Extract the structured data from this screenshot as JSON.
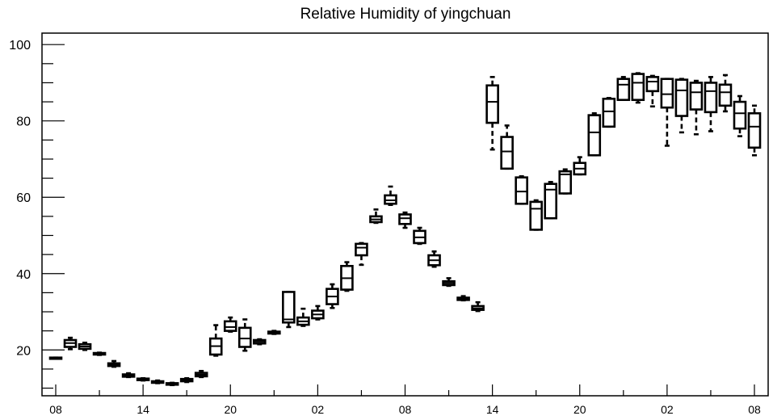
{
  "chart_data": {
    "type": "boxplot",
    "title": "Relative Humidity of yingchuan",
    "xlabel": "",
    "ylabel": "",
    "xlim": [
      0,
      48
    ],
    "ylim": [
      8,
      103
    ],
    "yticks": [
      20,
      40,
      60,
      80,
      100
    ],
    "yminor_step": 5,
    "xticks": [
      {
        "x": 0,
        "label": "08"
      },
      {
        "x": 6,
        "label": "14"
      },
      {
        "x": 12,
        "label": "20"
      },
      {
        "x": 18,
        "label": "02"
      },
      {
        "x": 24,
        "label": "08"
      },
      {
        "x": 30,
        "label": "14"
      },
      {
        "x": 36,
        "label": "20"
      },
      {
        "x": 42,
        "label": "02"
      },
      {
        "x": 48,
        "label": "08"
      }
    ],
    "boxes": [
      {
        "x": 0,
        "min": 17.8,
        "q1": 17.8,
        "median": 17.9,
        "q3": 18.0,
        "max": 18.0
      },
      {
        "x": 1,
        "min": 20.2,
        "q1": 20.8,
        "median": 21.8,
        "q3": 22.6,
        "max": 23.2
      },
      {
        "x": 2,
        "min": 20.0,
        "q1": 20.3,
        "median": 20.9,
        "q3": 21.5,
        "max": 21.9
      },
      {
        "x": 3,
        "min": 18.7,
        "q1": 18.8,
        "median": 19.0,
        "q3": 19.2,
        "max": 19.3
      },
      {
        "x": 4,
        "min": 15.6,
        "q1": 15.8,
        "median": 16.1,
        "q3": 16.5,
        "max": 17.1
      },
      {
        "x": 5,
        "min": 12.9,
        "q1": 13.0,
        "median": 13.3,
        "q3": 13.6,
        "max": 13.9
      },
      {
        "x": 6,
        "min": 12.0,
        "q1": 12.1,
        "median": 12.3,
        "q3": 12.5,
        "max": 12.6
      },
      {
        "x": 7,
        "min": 11.3,
        "q1": 11.4,
        "median": 11.6,
        "q3": 11.8,
        "max": 12.0
      },
      {
        "x": 8,
        "min": 10.8,
        "q1": 10.9,
        "median": 11.1,
        "q3": 11.3,
        "max": 11.4
      },
      {
        "x": 9,
        "min": 11.6,
        "q1": 11.8,
        "median": 12.1,
        "q3": 12.4,
        "max": 12.6
      },
      {
        "x": 10,
        "min": 12.9,
        "q1": 13.1,
        "median": 13.5,
        "q3": 14.0,
        "max": 14.5
      },
      {
        "x": 11,
        "min": 18.5,
        "q1": 18.8,
        "median": 21.0,
        "q3": 23.0,
        "max": 26.5
      },
      {
        "x": 12,
        "min": 24.8,
        "q1": 25.0,
        "median": 26.0,
        "q3": 27.5,
        "max": 28.5
      },
      {
        "x": 13,
        "min": 19.8,
        "q1": 20.8,
        "median": 23.0,
        "q3": 25.8,
        "max": 28.0
      },
      {
        "x": 14,
        "min": 21.5,
        "q1": 21.7,
        "median": 22.2,
        "q3": 22.6,
        "max": 22.8
      },
      {
        "x": 15,
        "min": 24.2,
        "q1": 24.3,
        "median": 24.6,
        "q3": 24.8,
        "max": 25.0
      },
      {
        "x": 16,
        "min": 26.0,
        "q1": 27.2,
        "median": 28.0,
        "q3": 35.2,
        "max": 35.2
      },
      {
        "x": 17,
        "min": 26.3,
        "q1": 26.6,
        "median": 27.5,
        "q3": 28.5,
        "max": 30.8
      },
      {
        "x": 18,
        "min": 28.0,
        "q1": 28.3,
        "median": 29.3,
        "q3": 30.3,
        "max": 31.5
      },
      {
        "x": 19,
        "min": 31.0,
        "q1": 32.0,
        "median": 34.0,
        "q3": 36.0,
        "max": 37.2
      },
      {
        "x": 20,
        "min": 35.5,
        "q1": 35.8,
        "median": 38.8,
        "q3": 42.0,
        "max": 43.0
      },
      {
        "x": 21,
        "min": 42.3,
        "q1": 44.8,
        "median": 46.8,
        "q3": 47.8,
        "max": 48.0
      },
      {
        "x": 22,
        "min": 53.3,
        "q1": 53.5,
        "median": 54.2,
        "q3": 55.0,
        "max": 56.8
      },
      {
        "x": 23,
        "min": 58.0,
        "q1": 58.3,
        "median": 59.2,
        "q3": 60.5,
        "max": 62.8
      },
      {
        "x": 24,
        "min": 52.0,
        "q1": 53.0,
        "median": 54.5,
        "q3": 55.5,
        "max": 56.0
      },
      {
        "x": 25,
        "min": 47.8,
        "q1": 48.0,
        "median": 49.5,
        "q3": 51.2,
        "max": 52.0
      },
      {
        "x": 26,
        "min": 41.8,
        "q1": 42.2,
        "median": 43.5,
        "q3": 44.8,
        "max": 45.8
      },
      {
        "x": 27,
        "min": 36.8,
        "q1": 37.0,
        "median": 37.5,
        "q3": 38.0,
        "max": 38.8
      },
      {
        "x": 28,
        "min": 33.0,
        "q1": 33.1,
        "median": 33.4,
        "q3": 33.7,
        "max": 34.1
      },
      {
        "x": 29,
        "min": 30.2,
        "q1": 30.5,
        "median": 30.9,
        "q3": 31.5,
        "max": 32.5
      },
      {
        "x": 30,
        "min": 72.5,
        "q1": 79.5,
        "median": 85.0,
        "q3": 89.3,
        "max": 91.5
      },
      {
        "x": 31,
        "min": 67.5,
        "q1": 67.5,
        "median": 72.0,
        "q3": 75.8,
        "max": 78.8
      },
      {
        "x": 32,
        "min": 58.3,
        "q1": 58.3,
        "median": 61.5,
        "q3": 65.2,
        "max": 65.5
      },
      {
        "x": 33,
        "min": 51.5,
        "q1": 51.5,
        "median": 57.0,
        "q3": 58.8,
        "max": 59.2
      },
      {
        "x": 34,
        "min": 54.5,
        "q1": 54.5,
        "median": 62.0,
        "q3": 63.5,
        "max": 64.0
      },
      {
        "x": 35,
        "min": 61.0,
        "q1": 61.0,
        "median": 66.0,
        "q3": 66.8,
        "max": 67.3
      },
      {
        "x": 36,
        "min": 66.0,
        "q1": 66.0,
        "median": 67.5,
        "q3": 69.0,
        "max": 70.5
      },
      {
        "x": 37,
        "min": 71.0,
        "q1": 71.0,
        "median": 77.0,
        "q3": 81.5,
        "max": 82.0
      },
      {
        "x": 38,
        "min": 78.5,
        "q1": 78.5,
        "median": 82.5,
        "q3": 85.8,
        "max": 86.0
      },
      {
        "x": 39,
        "min": 85.5,
        "q1": 85.5,
        "median": 89.5,
        "q3": 91.0,
        "max": 91.5
      },
      {
        "x": 40,
        "min": 84.8,
        "q1": 85.5,
        "median": 90.0,
        "q3": 92.3,
        "max": 92.5
      },
      {
        "x": 41,
        "min": 83.8,
        "q1": 87.8,
        "median": 90.3,
        "q3": 91.5,
        "max": 91.8
      },
      {
        "x": 42,
        "min": 73.5,
        "q1": 83.5,
        "median": 87.0,
        "q3": 91.0,
        "max": 91.0
      },
      {
        "x": 43,
        "min": 77.0,
        "q1": 81.3,
        "median": 88.0,
        "q3": 90.8,
        "max": 91.0
      },
      {
        "x": 44,
        "min": 76.5,
        "q1": 83.0,
        "median": 87.5,
        "q3": 90.0,
        "max": 90.5
      },
      {
        "x": 45,
        "min": 77.3,
        "q1": 82.3,
        "median": 87.8,
        "q3": 90.0,
        "max": 91.5
      },
      {
        "x": 46,
        "min": 82.5,
        "q1": 84.0,
        "median": 87.5,
        "q3": 89.5,
        "max": 92.0
      },
      {
        "x": 47,
        "min": 76.0,
        "q1": 78.0,
        "median": 82.0,
        "q3": 85.0,
        "max": 86.5
      },
      {
        "x": 48,
        "min": 71.0,
        "q1": 73.0,
        "median": 78.5,
        "q3": 82.0,
        "max": 84.0
      }
    ]
  }
}
